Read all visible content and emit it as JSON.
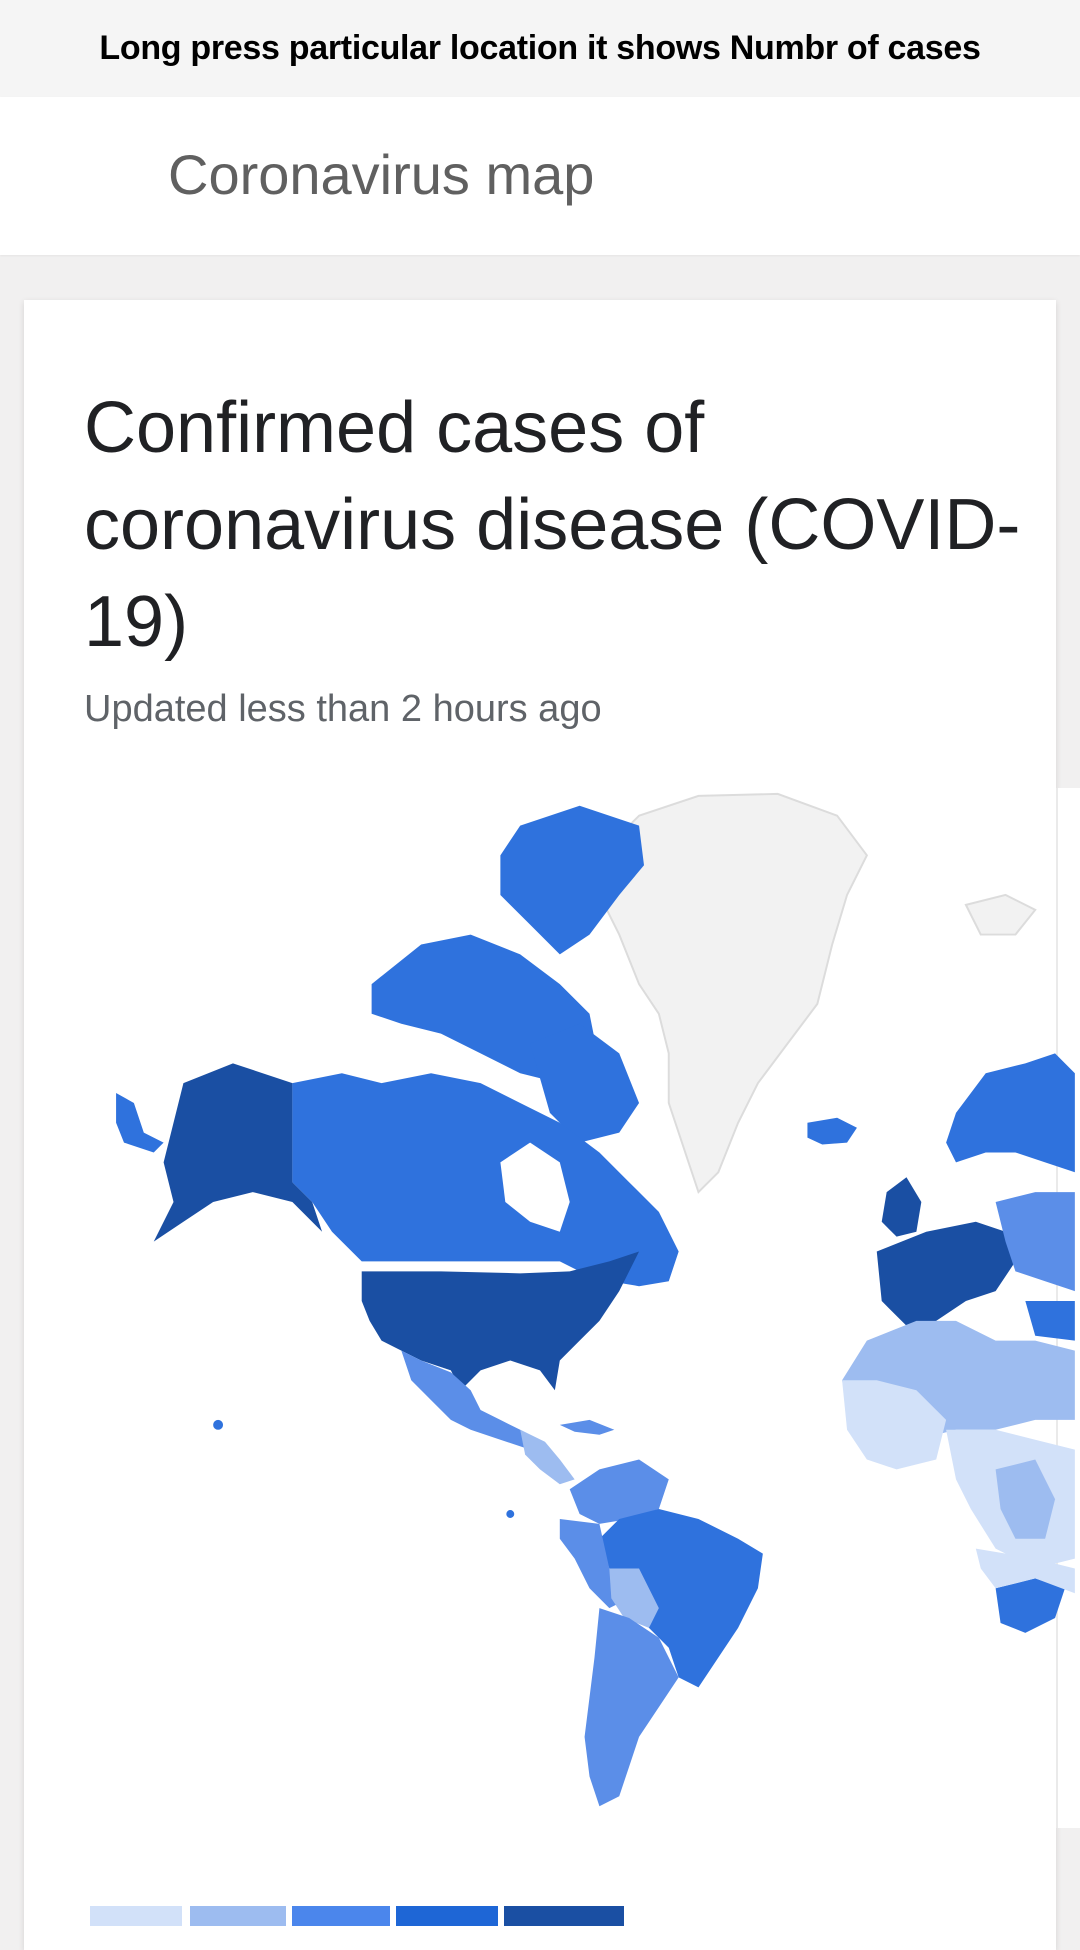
{
  "hint": {
    "text": "Long press particular location it shows Numbr of cases"
  },
  "app_bar": {
    "title": "Coronavirus map"
  },
  "card": {
    "title": "Confirmed cases of coronavirus disease (COVID-19)",
    "updated": "Updated less than 2 hours ago"
  },
  "map": {
    "colors": {
      "very_high": "#1a4fa3",
      "high": "#2f72dd",
      "medium": "#5b8ee8",
      "low": "#9dbcf0",
      "very_low": "#d2e1f9",
      "no_data": "#f2f2f2"
    }
  },
  "legend": {
    "colors": [
      "#d2e1f9",
      "#9dbcf0",
      "#4b86ec",
      "#1e66d6",
      "#1a4fa3"
    ]
  }
}
